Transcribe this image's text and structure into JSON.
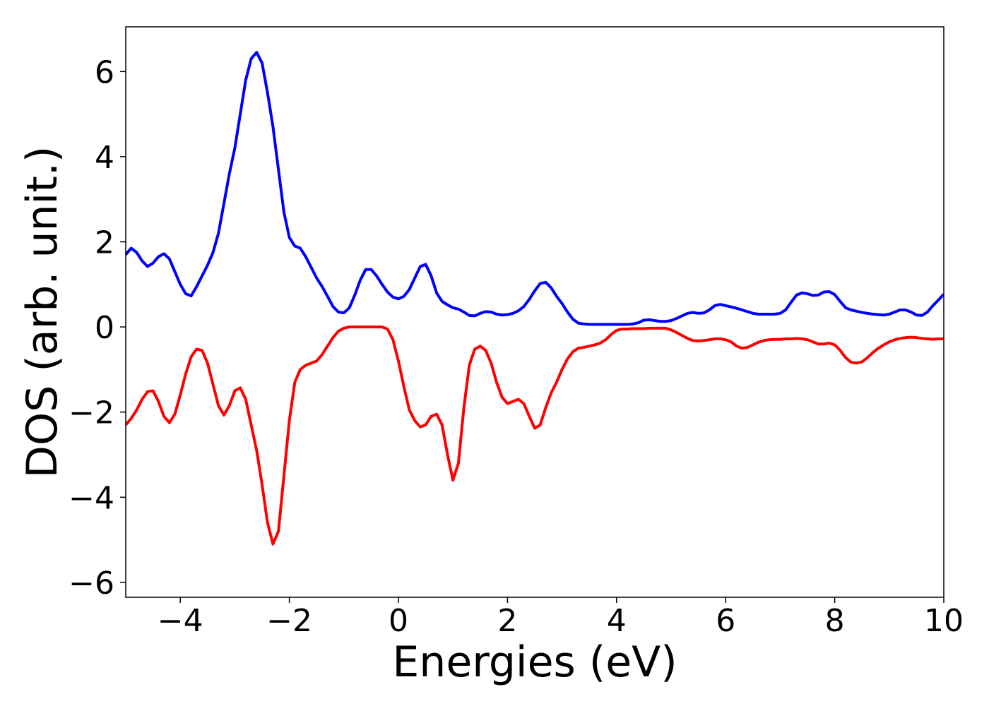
{
  "chart_data": {
    "type": "line",
    "xlabel": "Energies (eV)",
    "ylabel": "DOS (arb. unit.)",
    "x": [
      -5,
      -4.9,
      -4.8,
      -4.7,
      -4.6,
      -4.5,
      -4.4,
      -4.3,
      -4.2,
      -4.1,
      -4,
      -3.9,
      -3.8,
      -3.7,
      -3.6,
      -3.5,
      -3.4,
      -3.3,
      -3.2,
      -3.1,
      -3,
      -2.9,
      -2.8,
      -2.7,
      -2.6,
      -2.5,
      -2.4,
      -2.3,
      -2.2,
      -2.1,
      -2,
      -1.9,
      -1.8,
      -1.7,
      -1.6,
      -1.5,
      -1.4,
      -1.3,
      -1.2,
      -1.1,
      -1,
      -0.9,
      -0.8,
      -0.7,
      -0.6,
      -0.5,
      -0.4,
      -0.3,
      -0.2,
      -0.1,
      0,
      0.1,
      0.2,
      0.3,
      0.4,
      0.5,
      0.6,
      0.7,
      0.8,
      0.9,
      1,
      1.1,
      1.2,
      1.3,
      1.4,
      1.5,
      1.6,
      1.7,
      1.8,
      1.9,
      2,
      2.1,
      2.2,
      2.3,
      2.4,
      2.5,
      2.6,
      2.7,
      2.8,
      2.9,
      3,
      3.1,
      3.2,
      3.3,
      3.4,
      3.5,
      3.6,
      3.7,
      3.8,
      3.9,
      4,
      4.1,
      4.2,
      4.3,
      4.4,
      4.5,
      4.6,
      4.7,
      4.8,
      4.9,
      5,
      5.1,
      5.2,
      5.3,
      5.4,
      5.5,
      5.6,
      5.7,
      5.8,
      5.9,
      6,
      6.1,
      6.2,
      6.3,
      6.4,
      6.5,
      6.6,
      6.7,
      6.8,
      6.9,
      7,
      7.1,
      7.2,
      7.3,
      7.4,
      7.5,
      7.6,
      7.7,
      7.8,
      7.9,
      8,
      8.1,
      8.2,
      8.3,
      8.4,
      8.5,
      8.6,
      8.7,
      8.8,
      8.9,
      9,
      9.1,
      9.2,
      9.3,
      9.4,
      9.5,
      9.6,
      9.7,
      9.8,
      9.9,
      10
    ],
    "series": [
      {
        "color": "#0000ff",
        "values": [
          1.7,
          1.85,
          1.75,
          1.55,
          1.42,
          1.5,
          1.65,
          1.72,
          1.6,
          1.3,
          1.0,
          0.78,
          0.73,
          0.95,
          1.2,
          1.45,
          1.75,
          2.2,
          2.9,
          3.6,
          4.2,
          5.0,
          5.8,
          6.3,
          6.45,
          6.2,
          5.5,
          4.7,
          3.7,
          2.7,
          2.1,
          1.9,
          1.85,
          1.65,
          1.4,
          1.15,
          0.95,
          0.72,
          0.48,
          0.35,
          0.33,
          0.45,
          0.75,
          1.1,
          1.35,
          1.35,
          1.2,
          1.0,
          0.82,
          0.7,
          0.66,
          0.72,
          0.88,
          1.15,
          1.42,
          1.47,
          1.2,
          0.8,
          0.6,
          0.52,
          0.45,
          0.42,
          0.35,
          0.27,
          0.26,
          0.32,
          0.36,
          0.35,
          0.3,
          0.28,
          0.29,
          0.32,
          0.38,
          0.48,
          0.65,
          0.85,
          1.02,
          1.05,
          0.92,
          0.72,
          0.55,
          0.35,
          0.18,
          0.09,
          0.07,
          0.06,
          0.06,
          0.06,
          0.06,
          0.06,
          0.06,
          0.06,
          0.06,
          0.07,
          0.1,
          0.16,
          0.17,
          0.15,
          0.13,
          0.13,
          0.15,
          0.2,
          0.26,
          0.32,
          0.34,
          0.32,
          0.33,
          0.4,
          0.5,
          0.53,
          0.5,
          0.47,
          0.44,
          0.4,
          0.36,
          0.32,
          0.3,
          0.3,
          0.3,
          0.3,
          0.32,
          0.4,
          0.58,
          0.75,
          0.8,
          0.78,
          0.74,
          0.75,
          0.82,
          0.83,
          0.76,
          0.6,
          0.45,
          0.4,
          0.37,
          0.34,
          0.32,
          0.3,
          0.29,
          0.28,
          0.3,
          0.35,
          0.4,
          0.4,
          0.35,
          0.28,
          0.27,
          0.35,
          0.5,
          0.63,
          0.77
        ]
      },
      {
        "color": "#ff0000",
        "values": [
          -2.3,
          -2.15,
          -1.95,
          -1.7,
          -1.52,
          -1.5,
          -1.75,
          -2.1,
          -2.25,
          -2.05,
          -1.6,
          -1.1,
          -0.7,
          -0.52,
          -0.55,
          -0.85,
          -1.35,
          -1.85,
          -2.07,
          -1.85,
          -1.5,
          -1.43,
          -1.7,
          -2.3,
          -2.9,
          -3.7,
          -4.6,
          -5.1,
          -4.8,
          -3.5,
          -2.2,
          -1.3,
          -1.0,
          -0.9,
          -0.85,
          -0.8,
          -0.65,
          -0.45,
          -0.25,
          -0.1,
          -0.03,
          0,
          0,
          0,
          0,
          0,
          0,
          0,
          -0.05,
          -0.3,
          -0.8,
          -1.4,
          -1.95,
          -2.2,
          -2.35,
          -2.3,
          -2.1,
          -2.05,
          -2.3,
          -3.0,
          -3.6,
          -3.2,
          -1.9,
          -0.9,
          -0.52,
          -0.45,
          -0.55,
          -0.85,
          -1.3,
          -1.65,
          -1.8,
          -1.75,
          -1.7,
          -1.8,
          -2.1,
          -2.38,
          -2.3,
          -1.9,
          -1.55,
          -1.3,
          -1.0,
          -0.75,
          -0.58,
          -0.5,
          -0.48,
          -0.45,
          -0.42,
          -0.38,
          -0.3,
          -0.18,
          -0.08,
          -0.05,
          -0.05,
          -0.04,
          -0.04,
          -0.04,
          -0.03,
          -0.03,
          -0.03,
          -0.03,
          -0.07,
          -0.13,
          -0.2,
          -0.27,
          -0.32,
          -0.33,
          -0.32,
          -0.3,
          -0.28,
          -0.28,
          -0.3,
          -0.35,
          -0.45,
          -0.5,
          -0.48,
          -0.42,
          -0.36,
          -0.32,
          -0.3,
          -0.29,
          -0.29,
          -0.28,
          -0.28,
          -0.27,
          -0.28,
          -0.3,
          -0.35,
          -0.4,
          -0.4,
          -0.38,
          -0.42,
          -0.55,
          -0.72,
          -0.83,
          -0.85,
          -0.82,
          -0.72,
          -0.6,
          -0.5,
          -0.42,
          -0.35,
          -0.3,
          -0.27,
          -0.25,
          -0.24,
          -0.25,
          -0.27,
          -0.28,
          -0.29,
          -0.28,
          -0.28
        ]
      }
    ],
    "xlim": [
      -5,
      10
    ],
    "ylim": [
      -6.35,
      7.05
    ],
    "xticks": [
      {
        "value": -4,
        "label": "−4"
      },
      {
        "value": -2,
        "label": "−2"
      },
      0,
      2,
      4,
      6,
      8,
      10
    ],
    "yticks": [
      {
        "value": -6,
        "label": "−6"
      },
      {
        "value": -4,
        "label": "−4"
      },
      {
        "value": -2,
        "label": "−2"
      },
      0,
      2,
      4,
      6
    ],
    "grid": false
  }
}
